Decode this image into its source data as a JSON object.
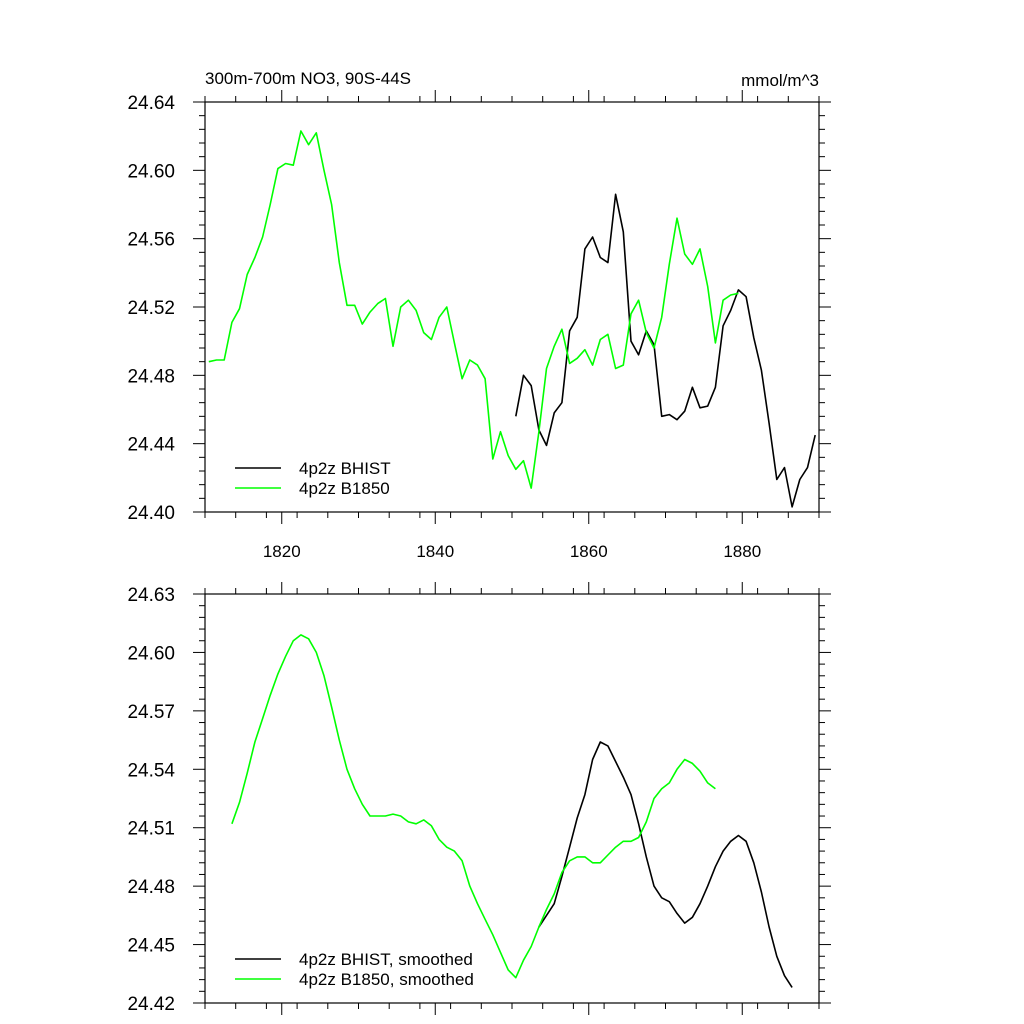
{
  "chart_data": [
    {
      "type": "line",
      "title": "300m-700m NO3, 90S-44S",
      "units_label": "mmol/m^3",
      "xlabel": "",
      "ylabel": "",
      "xlim": [
        1810,
        1890
      ],
      "ylim": [
        24.4,
        24.64
      ],
      "xticks": [
        1820,
        1840,
        1860,
        1880
      ],
      "xtick_labels": [
        "1820",
        "1840",
        "1860",
        "1880"
      ],
      "yticks": [
        24.4,
        24.44,
        24.48,
        24.52,
        24.56,
        24.6,
        24.64
      ],
      "ytick_labels": [
        "24.40",
        "24.44",
        "24.48",
        "24.52",
        "24.56",
        "24.60",
        "24.64"
      ],
      "grid": false,
      "legend_position": "bottom-left",
      "series": [
        {
          "name": "4p2z BHIST",
          "color": "#000000",
          "x": [
            1850.5,
            1851.5,
            1852.5,
            1853.5,
            1854.5,
            1855.5,
            1856.5,
            1857.5,
            1858.5,
            1859.5,
            1860.5,
            1861.5,
            1862.5,
            1863.5,
            1864.5,
            1865.5,
            1866.5,
            1867.5,
            1868.5,
            1869.5,
            1870.5,
            1871.5,
            1872.5,
            1873.5,
            1874.5,
            1875.5,
            1876.5,
            1877.5,
            1878.5,
            1879.5,
            1880.5,
            1881.5,
            1882.5,
            1883.5,
            1884.5,
            1885.5,
            1886.5,
            1887.5,
            1888.5,
            1889.5
          ],
          "values": [
            24.456,
            24.48,
            24.474,
            24.448,
            24.439,
            24.458,
            24.464,
            24.506,
            24.514,
            24.554,
            24.561,
            24.549,
            24.546,
            24.586,
            24.564,
            24.5,
            24.492,
            24.506,
            24.498,
            24.456,
            24.457,
            24.454,
            24.459,
            24.473,
            24.461,
            24.462,
            24.473,
            24.509,
            24.518,
            24.53,
            24.526,
            24.502,
            24.483,
            24.452,
            24.419,
            24.426,
            24.403,
            24.419,
            24.426,
            24.445
          ]
        },
        {
          "name": "4p2z B1850",
          "color": "#00ff00",
          "x": [
            1810.5,
            1811.5,
            1812.5,
            1813.5,
            1814.5,
            1815.5,
            1816.5,
            1817.5,
            1818.5,
            1819.5,
            1820.5,
            1821.5,
            1822.5,
            1823.5,
            1824.5,
            1825.5,
            1826.5,
            1827.5,
            1828.5,
            1829.5,
            1830.5,
            1831.5,
            1832.5,
            1833.5,
            1834.5,
            1835.5,
            1836.5,
            1837.5,
            1838.5,
            1839.5,
            1840.5,
            1841.5,
            1842.5,
            1843.5,
            1844.5,
            1845.5,
            1846.5,
            1847.5,
            1848.5,
            1849.5,
            1850.5,
            1851.5,
            1852.5,
            1853.5,
            1854.5,
            1855.5,
            1856.5,
            1857.5,
            1858.5,
            1859.5,
            1860.5,
            1861.5,
            1862.5,
            1863.5,
            1864.5,
            1865.5,
            1866.5,
            1867.5,
            1868.5,
            1869.5,
            1870.5,
            1871.5,
            1872.5,
            1873.5,
            1874.5,
            1875.5,
            1876.5,
            1877.5,
            1878.5,
            1879.5
          ],
          "values": [
            24.488,
            24.489,
            24.489,
            24.511,
            24.519,
            24.539,
            24.549,
            24.561,
            24.58,
            24.601,
            24.604,
            24.603,
            24.623,
            24.615,
            24.622,
            24.6,
            24.58,
            24.546,
            24.521,
            24.521,
            24.51,
            24.517,
            24.522,
            24.525,
            24.497,
            24.52,
            24.524,
            24.518,
            24.505,
            24.501,
            24.514,
            24.52,
            24.499,
            24.478,
            24.489,
            24.486,
            24.478,
            24.431,
            24.447,
            24.433,
            24.425,
            24.43,
            24.414,
            24.447,
            24.484,
            24.497,
            24.507,
            24.487,
            24.49,
            24.495,
            24.486,
            24.501,
            24.504,
            24.484,
            24.486,
            24.516,
            24.524,
            24.505,
            24.496,
            24.514,
            24.545,
            24.572,
            24.551,
            24.545,
            24.554,
            24.532,
            24.499,
            24.524,
            24.527,
            24.528
          ]
        }
      ]
    },
    {
      "type": "line",
      "title": "",
      "xlabel": "",
      "ylabel": "",
      "xlim": [
        1810,
        1890
      ],
      "ylim": [
        24.42,
        24.63
      ],
      "xticks": [
        1820,
        1840,
        1860,
        1880
      ],
      "xtick_labels": [],
      "yticks": [
        24.42,
        24.45,
        24.48,
        24.51,
        24.54,
        24.57,
        24.6,
        24.63
      ],
      "ytick_labels": [
        "24.42",
        "24.45",
        "24.48",
        "24.51",
        "24.54",
        "24.57",
        "24.60",
        "24.63"
      ],
      "grid": false,
      "legend_position": "bottom-left",
      "series": [
        {
          "name": "4p2z BHIST, smoothed",
          "color": "#000000",
          "x": [
            1853.5,
            1854.5,
            1855.5,
            1856.5,
            1857.5,
            1858.5,
            1859.5,
            1860.5,
            1861.5,
            1862.5,
            1863.5,
            1864.5,
            1865.5,
            1866.5,
            1867.5,
            1868.5,
            1869.5,
            1870.5,
            1871.5,
            1872.5,
            1873.5,
            1874.5,
            1875.5,
            1876.5,
            1877.5,
            1878.5,
            1879.5,
            1880.5,
            1881.5,
            1882.5,
            1883.5,
            1884.5,
            1885.5,
            1886.5
          ],
          "values": [
            24.459,
            24.465,
            24.471,
            24.485,
            24.5,
            24.515,
            24.527,
            24.545,
            24.554,
            24.552,
            24.544,
            24.536,
            24.527,
            24.512,
            24.495,
            24.48,
            24.474,
            24.472,
            24.466,
            24.461,
            24.464,
            24.471,
            24.48,
            24.49,
            24.498,
            24.503,
            24.506,
            24.503,
            24.492,
            24.477,
            24.459,
            24.444,
            24.434,
            24.428
          ]
        },
        {
          "name": "4p2z B1850, smoothed",
          "color": "#00ff00",
          "x": [
            1813.5,
            1814.5,
            1815.5,
            1816.5,
            1817.5,
            1818.5,
            1819.5,
            1820.5,
            1821.5,
            1822.5,
            1823.5,
            1824.5,
            1825.5,
            1826.5,
            1827.5,
            1828.5,
            1829.5,
            1830.5,
            1831.5,
            1832.5,
            1833.5,
            1834.5,
            1835.5,
            1836.5,
            1837.5,
            1838.5,
            1839.5,
            1840.5,
            1841.5,
            1842.5,
            1843.5,
            1844.5,
            1845.5,
            1846.5,
            1847.5,
            1848.5,
            1849.5,
            1850.5,
            1851.5,
            1852.5,
            1853.5,
            1854.5,
            1855.5,
            1856.5,
            1857.5,
            1858.5,
            1859.5,
            1860.5,
            1861.5,
            1862.5,
            1863.5,
            1864.5,
            1865.5,
            1866.5,
            1867.5,
            1868.5,
            1869.5,
            1870.5,
            1871.5,
            1872.5,
            1873.5,
            1874.5,
            1875.5,
            1876.5
          ],
          "values": [
            24.512,
            24.523,
            24.538,
            24.554,
            24.566,
            24.578,
            24.589,
            24.598,
            24.606,
            24.609,
            24.607,
            24.6,
            24.588,
            24.572,
            24.555,
            24.54,
            24.53,
            24.522,
            24.516,
            24.516,
            24.516,
            24.517,
            24.516,
            24.513,
            24.512,
            24.514,
            24.511,
            24.504,
            24.5,
            24.498,
            24.493,
            24.48,
            24.471,
            24.463,
            24.455,
            24.446,
            24.437,
            24.433,
            24.442,
            24.449,
            24.459,
            24.468,
            24.476,
            24.487,
            24.493,
            24.495,
            24.495,
            24.492,
            24.492,
            24.496,
            24.5,
            24.503,
            24.503,
            24.505,
            24.513,
            24.525,
            24.53,
            24.533,
            24.54,
            24.545,
            24.543,
            24.539,
            24.533,
            24.53
          ]
        }
      ]
    }
  ]
}
